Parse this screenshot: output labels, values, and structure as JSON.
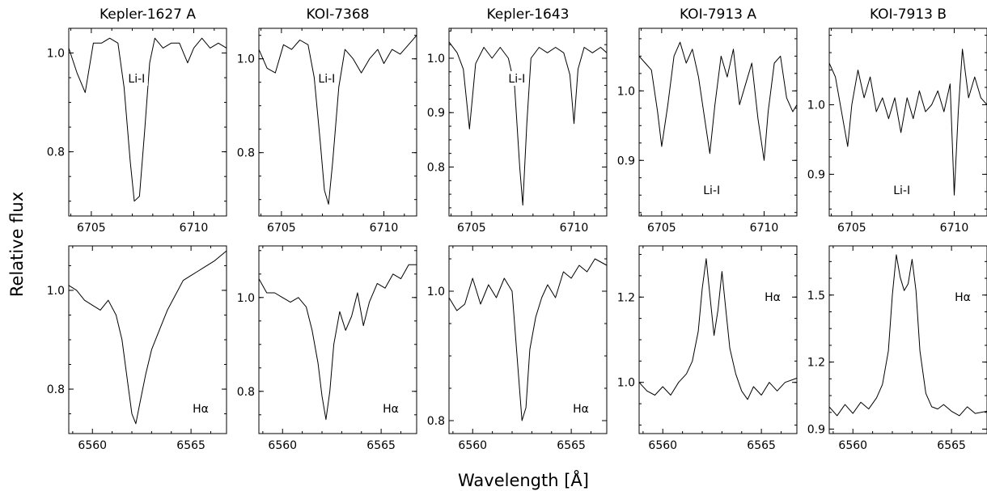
{
  "chart_data": {
    "type": "line",
    "ylabel": "Relative flux",
    "xlabel": "Wavelength [Å]",
    "columns": [
      {
        "title": "Kepler-1627 A",
        "panels": [
          {
            "row": "Li-I",
            "annotation": "Li-I",
            "annotation_pos": "top-center",
            "xlim": [
              6703.9,
              6711.6
            ],
            "ylim": [
              0.67,
              1.05
            ],
            "xticks": [
              6705,
              6710
            ],
            "yticks": [
              0.8,
              1.0
            ],
            "ytick_labels": [
              "0.8",
              "1.0"
            ],
            "x": [
              6703.9,
              6704.3,
              6704.7,
              6705.1,
              6705.5,
              6705.9,
              6706.3,
              6706.6,
              6706.9,
              6707.1,
              6707.35,
              6707.6,
              6707.85,
              6708.1,
              6708.5,
              6708.9,
              6709.3,
              6709.7,
              6710.0,
              6710.4,
              6710.8,
              6711.2,
              6711.6
            ],
            "y": [
              1.01,
              0.96,
              0.92,
              1.02,
              1.02,
              1.03,
              1.02,
              0.93,
              0.78,
              0.7,
              0.71,
              0.84,
              0.98,
              1.03,
              1.01,
              1.02,
              1.02,
              0.98,
              1.01,
              1.03,
              1.01,
              1.02,
              1.01
            ]
          },
          {
            "row": "Halpha",
            "annotation": "Hα",
            "annotation_pos": "bottom-right",
            "xlim": [
              6558.8,
              6566.8
            ],
            "ylim": [
              0.71,
              1.09
            ],
            "xticks": [
              6560,
              6565
            ],
            "yticks": [
              0.8,
              1.0
            ],
            "ytick_labels": [
              "0.8",
              "1.0"
            ],
            "x": [
              6558.8,
              6559.2,
              6559.6,
              6560.0,
              6560.4,
              6560.8,
              6561.2,
              6561.5,
              6561.8,
              6562.0,
              6562.2,
              6562.4,
              6562.7,
              6563.0,
              6563.4,
              6563.8,
              6564.2,
              6564.6,
              6565.0,
              6565.4,
              6565.8,
              6566.2,
              6566.8
            ],
            "y": [
              1.01,
              1.0,
              0.98,
              0.97,
              0.96,
              0.98,
              0.95,
              0.9,
              0.81,
              0.75,
              0.73,
              0.77,
              0.83,
              0.88,
              0.92,
              0.96,
              0.99,
              1.02,
              1.03,
              1.04,
              1.05,
              1.06,
              1.08
            ]
          }
        ]
      },
      {
        "title": "KOI-7368",
        "panels": [
          {
            "row": "Li-I",
            "annotation": "Li-I",
            "annotation_pos": "top-center",
            "xlim": [
              6703.9,
              6711.6
            ],
            "ylim": [
              0.665,
              1.065
            ],
            "xticks": [
              6705,
              6710
            ],
            "yticks": [
              0.8,
              1.0
            ],
            "ytick_labels": [
              "0.8",
              "1.0"
            ],
            "x": [
              6703.9,
              6704.3,
              6704.7,
              6705.1,
              6705.5,
              6705.9,
              6706.3,
              6706.6,
              6706.9,
              6707.1,
              6707.3,
              6707.5,
              6707.8,
              6708.1,
              6708.5,
              6708.9,
              6709.3,
              6709.7,
              6710.0,
              6710.4,
              6710.8,
              6711.2,
              6711.6
            ],
            "y": [
              1.02,
              0.98,
              0.97,
              1.03,
              1.02,
              1.04,
              1.03,
              0.96,
              0.82,
              0.72,
              0.69,
              0.78,
              0.94,
              1.02,
              1.0,
              0.97,
              1.0,
              1.02,
              0.99,
              1.02,
              1.01,
              1.03,
              1.05
            ]
          },
          {
            "row": "Halpha",
            "annotation": "Hα",
            "annotation_pos": "bottom-right",
            "xlim": [
              6558.8,
              6566.8
            ],
            "ylim": [
              0.71,
              1.11
            ],
            "xticks": [
              6560,
              6565
            ],
            "yticks": [
              0.8,
              1.0
            ],
            "ytick_labels": [
              "0.8",
              "1.0"
            ],
            "x": [
              6558.8,
              6559.2,
              6559.6,
              6560.0,
              6560.4,
              6560.8,
              6561.2,
              6561.5,
              6561.8,
              6562.0,
              6562.2,
              6562.4,
              6562.6,
              6562.9,
              6563.2,
              6563.5,
              6563.8,
              6564.1,
              6564.4,
              6564.8,
              6565.2,
              6565.6,
              6566.0,
              6566.4,
              6566.8
            ],
            "y": [
              1.04,
              1.01,
              1.01,
              1.0,
              0.99,
              1.0,
              0.98,
              0.93,
              0.86,
              0.79,
              0.74,
              0.8,
              0.9,
              0.97,
              0.93,
              0.96,
              1.01,
              0.94,
              0.99,
              1.03,
              1.02,
              1.05,
              1.04,
              1.07,
              1.07
            ]
          }
        ]
      },
      {
        "title": "Kepler-1643",
        "panels": [
          {
            "row": "Li-I",
            "annotation": "Li-I",
            "annotation_pos": "top-center",
            "xlim": [
              6703.9,
              6711.6
            ],
            "ylim": [
              0.71,
              1.055
            ],
            "xticks": [
              6705,
              6710
            ],
            "yticks": [
              0.8,
              0.9,
              1.0
            ],
            "ytick_labels": [
              "0.8",
              "0.9",
              "1.0"
            ],
            "x": [
              6703.9,
              6704.3,
              6704.6,
              6704.9,
              6705.2,
              6705.6,
              6706.0,
              6706.4,
              6706.8,
              6707.1,
              6707.35,
              6707.5,
              6707.7,
              6707.9,
              6708.3,
              6708.7,
              6709.1,
              6709.5,
              6709.8,
              6710.0,
              6710.2,
              6710.5,
              6710.9,
              6711.3,
              6711.6
            ],
            "y": [
              1.03,
              1.01,
              0.98,
              0.87,
              0.99,
              1.02,
              1.0,
              1.02,
              1.0,
              0.95,
              0.8,
              0.73,
              0.88,
              1.0,
              1.02,
              1.01,
              1.02,
              1.01,
              0.97,
              0.88,
              0.98,
              1.02,
              1.01,
              1.02,
              1.01
            ]
          },
          {
            "row": "Halpha",
            "annotation": "Hα",
            "annotation_pos": "bottom-right",
            "xlim": [
              6558.8,
              6566.8
            ],
            "ylim": [
              0.78,
              1.07
            ],
            "xticks": [
              6560,
              6565
            ],
            "yticks": [
              0.8,
              1.0
            ],
            "ytick_labels": [
              "0.8",
              "1.0"
            ],
            "x": [
              6558.8,
              6559.2,
              6559.6,
              6560.0,
              6560.4,
              6560.8,
              6561.2,
              6561.6,
              6562.0,
              6562.3,
              6562.5,
              6562.7,
              6562.9,
              6563.2,
              6563.5,
              6563.8,
              6564.2,
              6564.6,
              6565.0,
              6565.4,
              6565.8,
              6566.2,
              6566.8
            ],
            "y": [
              0.99,
              0.97,
              0.98,
              1.02,
              0.98,
              1.01,
              0.99,
              1.02,
              1.0,
              0.88,
              0.8,
              0.82,
              0.91,
              0.96,
              0.99,
              1.01,
              0.99,
              1.03,
              1.02,
              1.04,
              1.03,
              1.05,
              1.04
            ]
          }
        ]
      },
      {
        "title": "KOI-7913 A",
        "panels": [
          {
            "row": "Li-I",
            "annotation": "Li-I",
            "annotation_pos": "bottom-center",
            "xlim": [
              6703.9,
              6711.6
            ],
            "ylim": [
              0.82,
              1.09
            ],
            "xticks": [
              6705,
              6710
            ],
            "yticks": [
              0.9,
              1.0
            ],
            "ytick_labels": [
              "0.9",
              "1.0"
            ],
            "x": [
              6703.9,
              6704.2,
              6704.5,
              6704.8,
              6705.0,
              6705.3,
              6705.6,
              6705.9,
              6706.2,
              6706.5,
              6706.8,
              6707.1,
              6707.35,
              6707.6,
              6707.9,
              6708.2,
              6708.5,
              6708.8,
              6709.1,
              6709.4,
              6709.7,
              6710.0,
              6710.2,
              6710.5,
              6710.8,
              6711.1,
              6711.4,
              6711.6
            ],
            "y": [
              1.05,
              1.04,
              1.03,
              0.97,
              0.92,
              0.98,
              1.05,
              1.07,
              1.04,
              1.06,
              1.02,
              0.96,
              0.91,
              0.98,
              1.05,
              1.02,
              1.06,
              0.98,
              1.01,
              1.04,
              0.96,
              0.9,
              0.97,
              1.04,
              1.05,
              0.99,
              0.97,
              0.98
            ]
          },
          {
            "row": "Halpha",
            "annotation": "Hα",
            "annotation_pos": "top-right",
            "xlim": [
              6558.8,
              6566.8
            ],
            "ylim": [
              0.88,
              1.32
            ],
            "xticks": [
              6560,
              6565
            ],
            "yticks": [
              1.0,
              1.2
            ],
            "ytick_labels": [
              "1.0",
              "1.2"
            ],
            "x": [
              6558.8,
              6559.2,
              6559.6,
              6560.0,
              6560.4,
              6560.8,
              6561.2,
              6561.5,
              6561.8,
              6562.0,
              6562.2,
              6562.4,
              6562.6,
              6562.8,
              6563.0,
              6563.2,
              6563.4,
              6563.7,
              6564.0,
              6564.3,
              6564.6,
              6565.0,
              6565.4,
              6565.8,
              6566.2,
              6566.8
            ],
            "y": [
              1.0,
              0.98,
              0.97,
              0.99,
              0.97,
              1.0,
              1.02,
              1.05,
              1.12,
              1.22,
              1.29,
              1.2,
              1.11,
              1.17,
              1.26,
              1.17,
              1.08,
              1.02,
              0.98,
              0.96,
              0.99,
              0.97,
              1.0,
              0.98,
              1.0,
              1.01
            ]
          }
        ]
      },
      {
        "title": "KOI-7913 B",
        "panels": [
          {
            "row": "Li-I",
            "annotation": "Li-I",
            "annotation_pos": "bottom-center",
            "xlim": [
              6703.9,
              6711.6
            ],
            "ylim": [
              0.84,
              1.11
            ],
            "xticks": [
              6705,
              6710
            ],
            "yticks": [
              0.9,
              1.0
            ],
            "ytick_labels": [
              "0.9",
              "1.0"
            ],
            "x": [
              6703.9,
              6704.2,
              6704.5,
              6704.8,
              6705.0,
              6705.3,
              6705.6,
              6705.9,
              6706.2,
              6706.5,
              6706.8,
              6707.1,
              6707.4,
              6707.7,
              6708.0,
              6708.3,
              6708.6,
              6708.9,
              6709.2,
              6709.5,
              6709.8,
              6710.0,
              6710.2,
              6710.4,
              6710.7,
              6711.0,
              6711.3,
              6711.6
            ],
            "y": [
              1.06,
              1.04,
              0.99,
              0.94,
              1.0,
              1.05,
              1.01,
              1.04,
              0.99,
              1.01,
              0.98,
              1.01,
              0.96,
              1.01,
              0.98,
              1.02,
              0.99,
              1.0,
              1.02,
              0.99,
              1.03,
              0.87,
              0.99,
              1.08,
              1.01,
              1.04,
              1.01,
              1.0
            ]
          },
          {
            "row": "Halpha",
            "annotation": "Hα",
            "annotation_pos": "top-right",
            "xlim": [
              6558.8,
              6566.8
            ],
            "ylim": [
              0.88,
              1.72
            ],
            "xticks": [
              6560,
              6565
            ],
            "yticks": [
              0.9,
              1.2,
              1.5
            ],
            "ytick_labels": [
              "0.9",
              "1.2",
              "1.5"
            ],
            "x": [
              6558.8,
              6559.2,
              6559.6,
              6560.0,
              6560.4,
              6560.8,
              6561.2,
              6561.5,
              6561.8,
              6562.0,
              6562.2,
              6562.4,
              6562.6,
              6562.8,
              6563.0,
              6563.2,
              6563.4,
              6563.7,
              6564.0,
              6564.3,
              6564.6,
              6565.0,
              6565.4,
              6565.8,
              6566.2,
              6566.8
            ],
            "y": [
              1.0,
              0.96,
              1.01,
              0.97,
              1.02,
              0.99,
              1.04,
              1.1,
              1.25,
              1.5,
              1.68,
              1.58,
              1.52,
              1.55,
              1.66,
              1.52,
              1.25,
              1.06,
              1.0,
              0.99,
              1.01,
              0.98,
              0.96,
              1.0,
              0.97,
              0.98
            ]
          }
        ]
      }
    ]
  }
}
